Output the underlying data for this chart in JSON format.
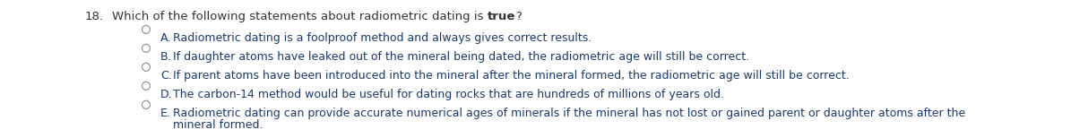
{
  "question_number": "18.",
  "question_pre": "Which of the following statements about radiometric dating is ",
  "question_bold": "true",
  "question_post": "?",
  "options": [
    {
      "letter": "A.",
      "text": "Radiometric dating is a foolproof method and always gives correct results.",
      "line2": null
    },
    {
      "letter": "B.",
      "text": "If daughter atoms have leaked out of the mineral being dated, the radiometric age will still be correct.",
      "line2": null
    },
    {
      "letter": "C.",
      "text": "If parent atoms have been introduced into the mineral after the mineral formed, the radiometric age will still be correct.",
      "line2": null
    },
    {
      "letter": "D.",
      "text": "The carbon-14 method would be useful for dating rocks that are hundreds of millions of years old.",
      "line2": null
    },
    {
      "letter": "E.",
      "text": "Radiometric dating can provide accurate numerical ages of minerals if the mineral has not lost or gained parent or daughter atoms after the",
      "line2": "mineral formed."
    }
  ],
  "background_color": "#ffffff",
  "question_color": "#333333",
  "option_text_color": "#1a3a6b",
  "circle_color": "#999999",
  "font_size": 9.0,
  "question_font_size": 9.5,
  "fig_width": 11.95,
  "fig_height": 1.54,
  "dpi": 100
}
